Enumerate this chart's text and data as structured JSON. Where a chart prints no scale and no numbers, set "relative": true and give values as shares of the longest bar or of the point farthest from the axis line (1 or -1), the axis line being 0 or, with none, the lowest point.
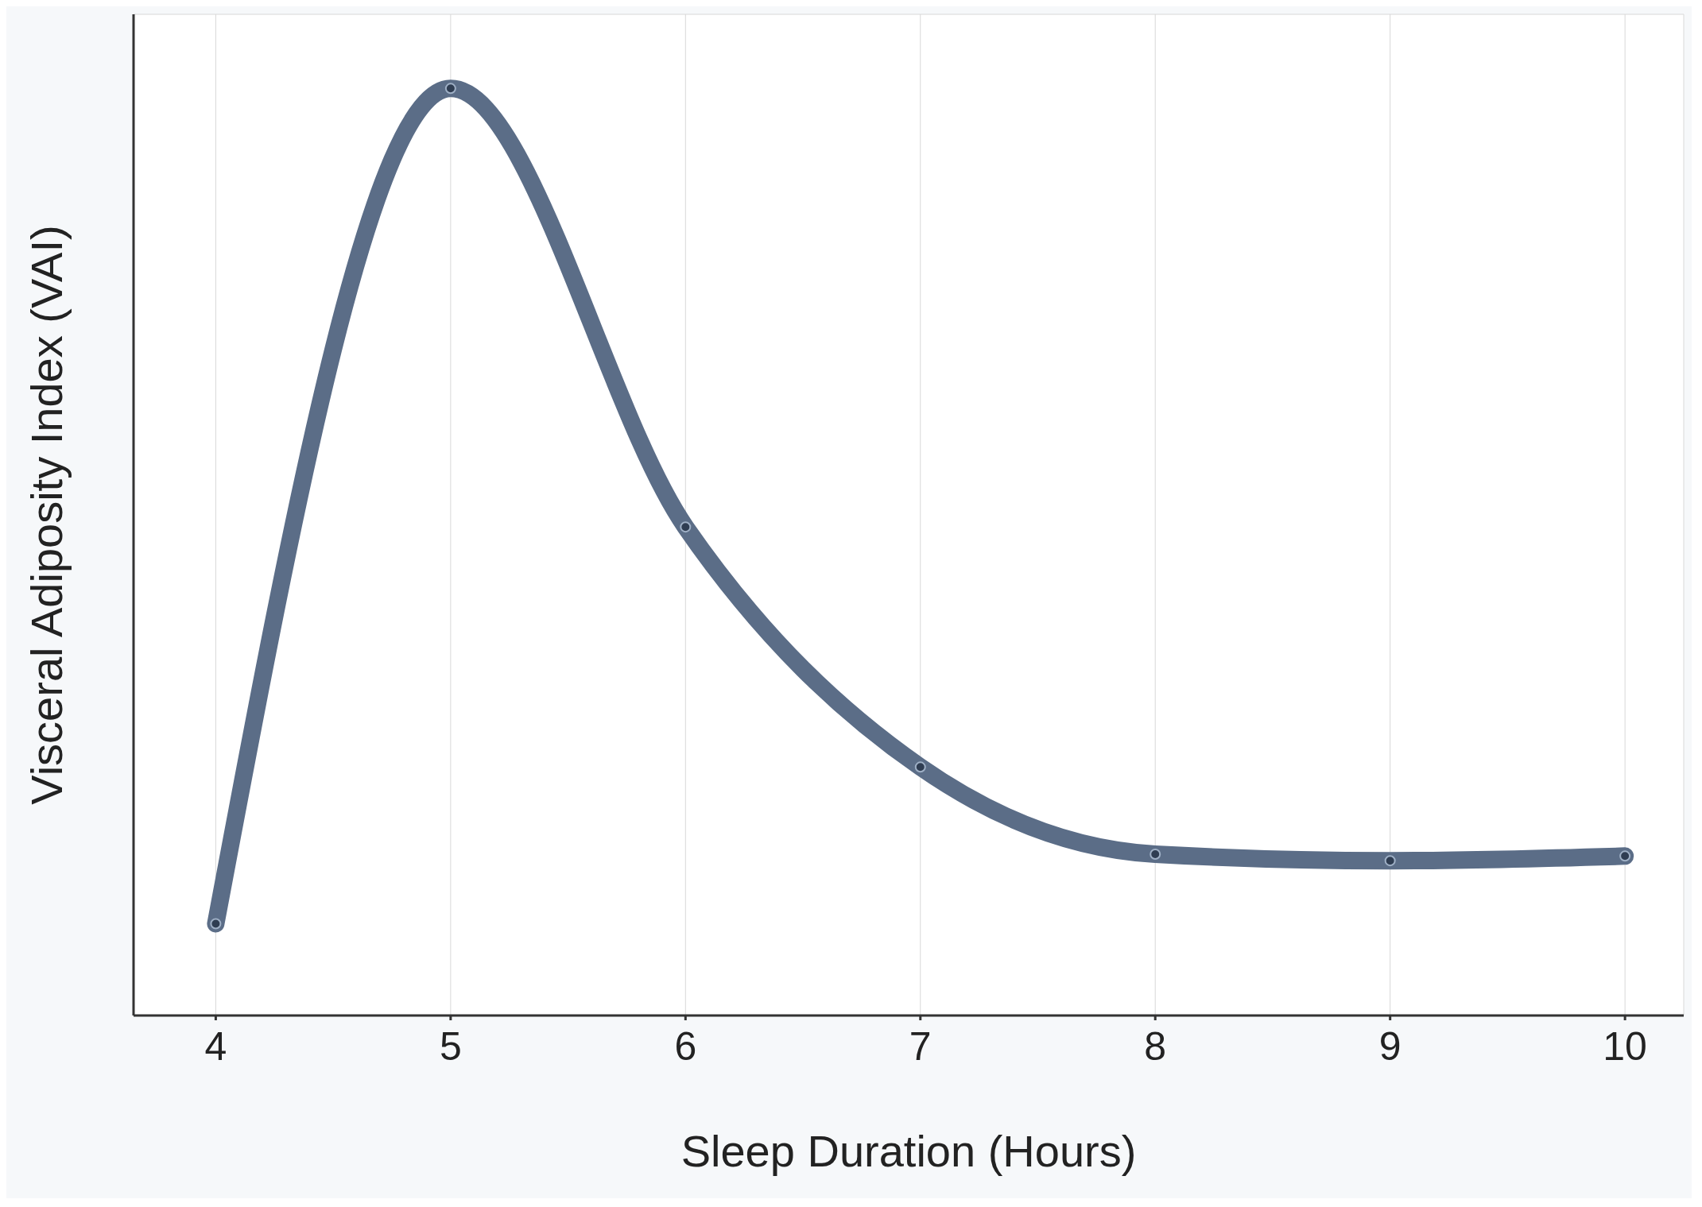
{
  "chart_data": {
    "type": "line",
    "xlabel": "Sleep Duration (Hours)",
    "ylabel": "Visceral Adiposity Index (VAI)",
    "relative": true,
    "x": [
      4,
      5,
      6,
      7,
      8,
      9,
      10
    ],
    "series": [
      {
        "color": "#5b6d87",
        "values": [
          0.099,
          1,
          0.527,
          0.268,
          0.174,
          0.167,
          0.172
        ]
      }
    ],
    "xlim": [
      3.65,
      10.25
    ],
    "xticks": [
      4,
      5,
      6,
      7,
      8,
      9,
      10
    ],
    "grid": true,
    "marker": "circle",
    "line_style": "solid"
  }
}
